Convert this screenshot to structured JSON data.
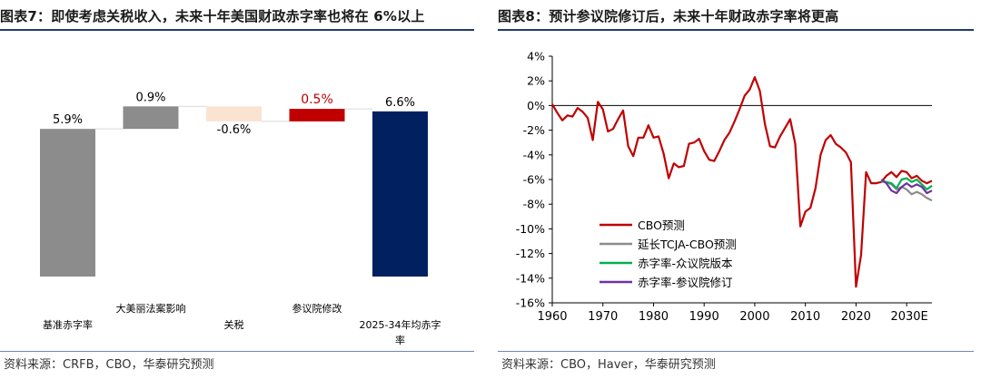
{
  "left": {
    "fig_label": "图表7：",
    "title": "即使考虑关税收入，未来十年美国财政赤字率也将在 6%以上",
    "source": "资料来源：CRFB，CBO，华泰研究预测"
  },
  "right": {
    "fig_label": "图表8：",
    "title": "预计参议院修订后，未来十年财政赤字率将更高",
    "source": "资料来源：CBO，Haver，华泰研究预测"
  },
  "chart_data": [
    {
      "type": "bar",
      "subtype": "waterfall",
      "categories": [
        "基准赤字率",
        "大美丽法案影响",
        "关税",
        "参议院修改",
        "2025-34年均赤字率"
      ],
      "category_lines": [
        [
          "基准赤字率"
        ],
        [
          "大美丽法案影响"
        ],
        [
          "关税"
        ],
        [
          "参议院修改"
        ],
        [
          "2025-34年均赤字",
          "率"
        ]
      ],
      "values": [
        5.9,
        0.9,
        -0.6,
        0.5,
        6.6
      ],
      "bar_kind": [
        "total",
        "delta",
        "delta",
        "delta",
        "total"
      ],
      "data_labels": [
        "5.9%",
        "0.9%",
        "-0.6%",
        "0.5%",
        "6.6%"
      ],
      "colors": [
        "#8c8c8c",
        "#8c8c8c",
        "#fbe3d2",
        "#c00000",
        "#002060"
      ],
      "label_colors": [
        "#000000",
        "#000000",
        "#000000",
        "#c00000",
        "#000000"
      ],
      "ylim": [
        0,
        7.0
      ]
    },
    {
      "type": "line",
      "ylim": [
        -16,
        4
      ],
      "yticks": [
        -16,
        -14,
        -12,
        -10,
        -8,
        -6,
        -4,
        -2,
        0,
        2,
        4
      ],
      "ytick_labels": [
        "-16%",
        "-14%",
        "-12%",
        "-10%",
        "-8%",
        "-6%",
        "-4%",
        "-2%",
        "0%",
        "2%",
        "4%"
      ],
      "xlim": [
        1960,
        2035
      ],
      "xticks": [
        1960,
        1970,
        1980,
        1990,
        2000,
        2010,
        2020,
        2030
      ],
      "xtick_labels": [
        "1960",
        "1970",
        "1980",
        "1990",
        "2000",
        "2010",
        "2020",
        "2030E"
      ],
      "series": [
        {
          "name": "CBO预测",
          "color": "#c00000",
          "x": [
            1960,
            1961,
            1962,
            1963,
            1964,
            1965,
            1966,
            1967,
            1968,
            1969,
            1970,
            1971,
            1972,
            1973,
            1974,
            1975,
            1976,
            1977,
            1978,
            1979,
            1980,
            1981,
            1982,
            1983,
            1984,
            1985,
            1986,
            1987,
            1988,
            1989,
            1990,
            1991,
            1992,
            1993,
            1994,
            1995,
            1996,
            1997,
            1998,
            1999,
            2000,
            2001,
            2002,
            2003,
            2004,
            2005,
            2006,
            2007,
            2008,
            2009,
            2010,
            2011,
            2012,
            2013,
            2014,
            2015,
            2016,
            2017,
            2018,
            2019,
            2020,
            2021,
            2022,
            2023,
            2024,
            2025,
            2026,
            2027,
            2028,
            2029,
            2030,
            2031,
            2032,
            2033,
            2034,
            2035
          ],
          "values": [
            0.1,
            -0.6,
            -1.2,
            -0.8,
            -0.9,
            -0.2,
            -0.5,
            -1.0,
            -2.8,
            0.3,
            -0.3,
            -2.1,
            -1.9,
            -1.1,
            -0.4,
            -3.3,
            -4.1,
            -2.6,
            -2.6,
            -1.6,
            -2.6,
            -2.5,
            -3.9,
            -5.9,
            -4.7,
            -5.0,
            -4.9,
            -3.1,
            -3.0,
            -2.7,
            -3.7,
            -4.4,
            -4.5,
            -3.7,
            -2.8,
            -2.2,
            -1.3,
            -0.3,
            0.8,
            1.3,
            2.3,
            1.2,
            -1.5,
            -3.3,
            -3.4,
            -2.5,
            -1.8,
            -1.1,
            -3.1,
            -9.8,
            -8.6,
            -8.3,
            -6.7,
            -4.0,
            -2.8,
            -2.4,
            -3.1,
            -3.4,
            -3.8,
            -4.6,
            -14.7,
            -12.1,
            -5.4,
            -6.3,
            -6.3,
            -6.2,
            -5.7,
            -5.4,
            -5.8,
            -5.3,
            -5.4,
            -5.9,
            -5.7,
            -6.1,
            -6.3,
            -6.1
          ]
        },
        {
          "name": "延长TCJA-CBO预测",
          "color": "#8c8c8c",
          "x": [
            2025,
            2026,
            2027,
            2028,
            2029,
            2030,
            2031,
            2032,
            2033,
            2034,
            2035
          ],
          "values": [
            -6.2,
            -6.2,
            -6.4,
            -6.8,
            -6.6,
            -6.8,
            -7.2,
            -7.0,
            -7.2,
            -7.5,
            -7.7
          ]
        },
        {
          "name": "赤字率-众议院版本",
          "color": "#00b050",
          "x": [
            2025,
            2026,
            2027,
            2028,
            2029,
            2030,
            2031,
            2032,
            2033,
            2034,
            2035
          ],
          "values": [
            -6.1,
            -6.2,
            -6.3,
            -6.7,
            -6.0,
            -5.9,
            -6.2,
            -6.0,
            -6.4,
            -6.8,
            -6.5
          ]
        },
        {
          "name": "赤字率-参议院修订",
          "color": "#7030a0",
          "x": [
            2025,
            2026,
            2027,
            2028,
            2029,
            2030,
            2031,
            2032,
            2033,
            2034,
            2035
          ],
          "values": [
            -6.0,
            -6.3,
            -6.9,
            -7.1,
            -6.6,
            -6.3,
            -6.6,
            -6.4,
            -6.6,
            -7.1,
            -6.9
          ]
        }
      ],
      "legend_position": "lower-left"
    }
  ]
}
